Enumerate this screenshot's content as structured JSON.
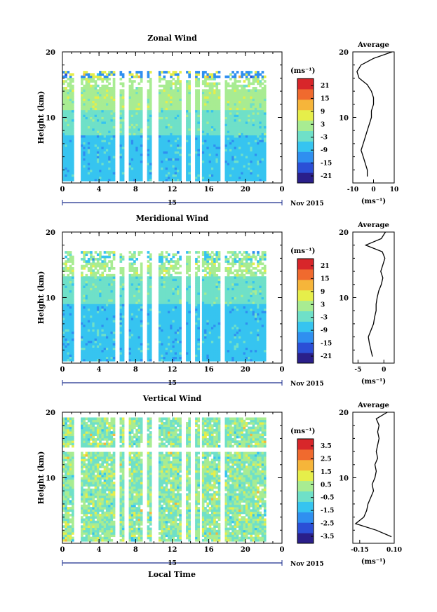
{
  "panels": [
    {
      "title": "Zonal Wind",
      "ylabel": "Height (km)",
      "unit_label": "(ms⁻¹)",
      "cbar_ticks": [
        "21",
        "15",
        "9",
        "3",
        "-3",
        "-9",
        "-15",
        "-21"
      ],
      "cbar_range": [
        -24,
        24
      ],
      "avg_title": "Average",
      "avg_xticks": [
        "-10",
        "0",
        "10"
      ],
      "avg_unit": "(ms⁻¹)"
    },
    {
      "title": "Meridional Wind",
      "ylabel": "Height (km)",
      "unit_label": "(ms⁻¹)",
      "cbar_ticks": [
        "21",
        "15",
        "9",
        "3",
        "-3",
        "-9",
        "-15",
        "-21"
      ],
      "cbar_range": [
        -24,
        24
      ],
      "avg_title": "Average",
      "avg_xticks": [
        "-5",
        "0"
      ],
      "avg_unit": "(ms⁻¹)"
    },
    {
      "title": "Vertical Wind",
      "ylabel": "Height (km)",
      "unit_label": "(ms⁻¹)",
      "cbar_ticks": [
        "3.5",
        "2.5",
        "1.5",
        "0.5",
        "-0.5",
        "-1.5",
        "-2.5",
        "-3.5"
      ],
      "cbar_range": [
        -4,
        4
      ],
      "avg_title": "Average",
      "avg_xticks": [
        "-0.15",
        "0.10"
      ],
      "avg_unit": "(ms⁻¹)"
    }
  ],
  "x_ticks": [
    "0",
    "4",
    "8",
    "12",
    "16",
    "20",
    "0"
  ],
  "yticks": [
    "20",
    "10"
  ],
  "date_label": "15",
  "month_label": "Nov 2015",
  "xlabel": "Local Time",
  "colors": {
    "cmap": [
      "#2a1f8a",
      "#2b4fd6",
      "#2f8ff0",
      "#36c4f0",
      "#6fe0c8",
      "#a8ec92",
      "#e6ee4a",
      "#f6b53a",
      "#f06a2e",
      "#d8262a"
    ],
    "gap": "#ffffff"
  },
  "chart_data": [
    {
      "type": "heatmap",
      "title": "Zonal Wind",
      "ylabel": "Height (km)",
      "x_range_hours": [
        0,
        24
      ],
      "y_range_km": [
        0,
        20
      ],
      "colorbar_range": [
        -24,
        24
      ],
      "profile": {
        "type": "line",
        "title": "Average",
        "xlim": [
          -10,
          10
        ],
        "height_km": [
          1,
          2,
          3,
          4,
          5,
          6,
          7,
          8,
          9,
          10,
          11,
          12,
          13,
          14,
          15,
          16,
          17,
          18,
          19,
          20
        ],
        "values": [
          -3,
          -3,
          -4,
          -5,
          -6,
          -5,
          -4,
          -3,
          -2,
          -1,
          -1,
          0,
          0,
          -1,
          -3,
          -7,
          -8,
          -6,
          0,
          9
        ]
      }
    },
    {
      "type": "heatmap",
      "title": "Meridional Wind",
      "ylabel": "Height (km)",
      "x_range_hours": [
        0,
        24
      ],
      "y_range_km": [
        0,
        20
      ],
      "colorbar_range": [
        -24,
        24
      ],
      "profile": {
        "type": "line",
        "title": "Average",
        "xlim": [
          -6,
          2
        ],
        "height_km": [
          1,
          2,
          3,
          4,
          5,
          6,
          7,
          8,
          9,
          10,
          11,
          12,
          13,
          14,
          15,
          16,
          17,
          18,
          19,
          20
        ],
        "values": [
          -2.2,
          -2.5,
          -2.8,
          -3.0,
          -2.5,
          -2.0,
          -1.8,
          -1.5,
          -1.5,
          -1.3,
          -1.0,
          -0.5,
          -0.2,
          -0.6,
          -0.2,
          0.2,
          -0.3,
          -3.5,
          -0.5,
          0.3
        ]
      }
    },
    {
      "type": "heatmap",
      "title": "Vertical Wind",
      "ylabel": "Height (km)",
      "x_range_hours": [
        0,
        24
      ],
      "y_range_km": [
        0,
        20
      ],
      "colorbar_range": [
        -4,
        4
      ],
      "profile": {
        "type": "line",
        "title": "Average",
        "xlim": [
          -0.2,
          0.1
        ],
        "height_km": [
          1,
          2,
          3,
          4,
          5,
          6,
          7,
          8,
          9,
          10,
          11,
          12,
          13,
          14,
          15,
          16,
          17,
          18,
          19,
          20
        ],
        "values": [
          0.08,
          -0.03,
          -0.18,
          -0.12,
          -0.1,
          -0.09,
          -0.07,
          -0.05,
          -0.06,
          -0.04,
          -0.03,
          -0.04,
          -0.02,
          -0.03,
          -0.02,
          -0.01,
          -0.02,
          -0.01,
          -0.03,
          0.05
        ]
      }
    }
  ]
}
